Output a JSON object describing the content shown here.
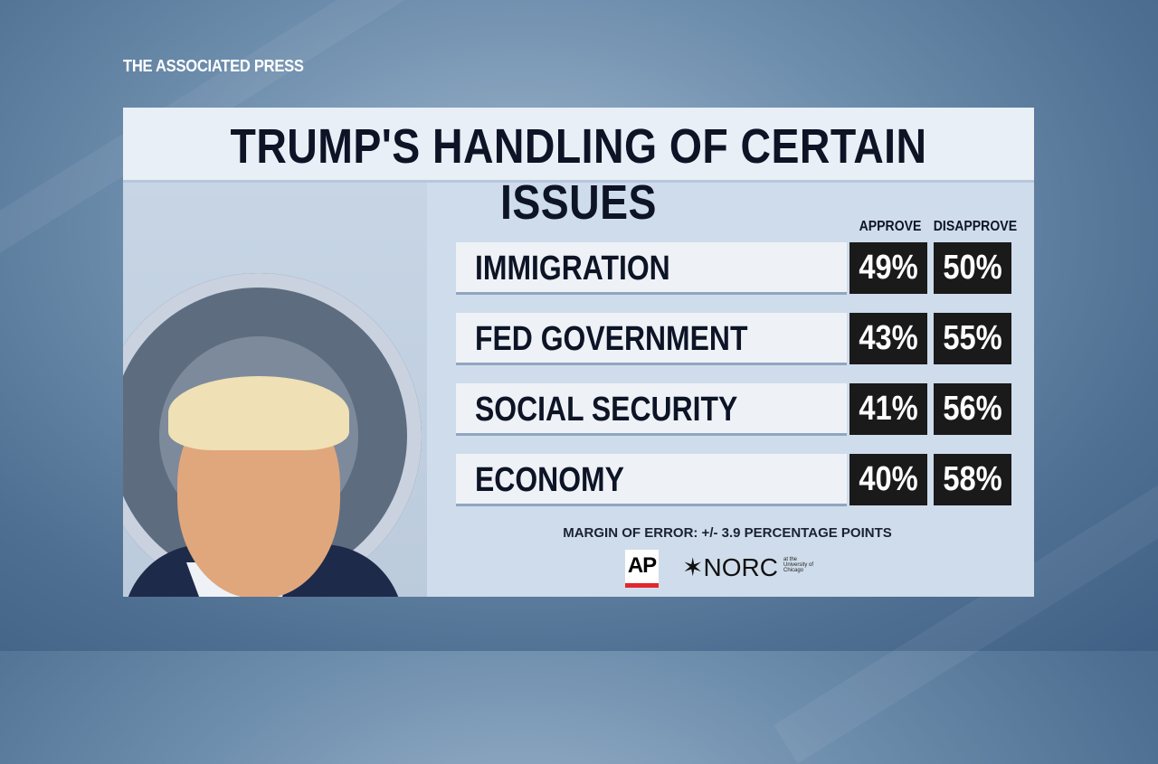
{
  "brand": "THE ASSOCIATED PRESS",
  "chart_data": {
    "type": "table",
    "title": "TRUMP'S HANDLING OF CERTAIN ISSUES",
    "columns": [
      "APPROVE",
      "DISAPPROVE"
    ],
    "categories": [
      "IMMIGRATION",
      "FED GOVERNMENT",
      "SOCIAL SECURITY",
      "ECONOMY"
    ],
    "series": [
      {
        "name": "APPROVE",
        "values": [
          49,
          43,
          41,
          40
        ]
      },
      {
        "name": "DISAPPROVE",
        "values": [
          50,
          55,
          56,
          58
        ]
      }
    ],
    "value_labels": {
      "approve": [
        "49%",
        "43%",
        "41%",
        "40%"
      ],
      "disapprove": [
        "50%",
        "55%",
        "56%",
        "58%"
      ]
    },
    "note": "MARGIN OF ERROR: +/- 3.9 PERCENTAGE POINTS"
  },
  "logos": {
    "ap": "AP",
    "norc": "NORC",
    "norc_sub": "at the University of Chicago"
  },
  "colors": {
    "value_box": "#1a1a1a",
    "title_text": "#0d1426",
    "ap_red": "#e0282e"
  }
}
